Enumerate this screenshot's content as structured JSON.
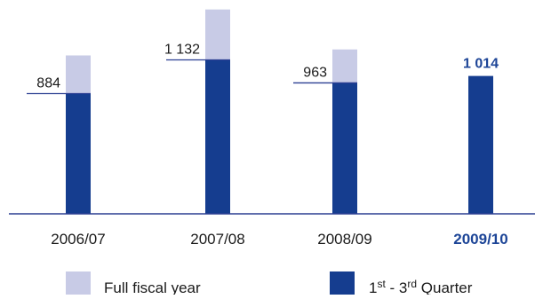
{
  "colors": {
    "full_year": "#c8cbe6",
    "q1_q3": "#153d8f",
    "axis": "#2b3f92",
    "text": "#1a1a1a",
    "highlight_text": "#1d4597"
  },
  "chart_data": {
    "type": "bar",
    "categories": [
      "2006/07",
      "2007/08",
      "2008/09",
      "2009/10"
    ],
    "highlight_category": "2009/10",
    "series": [
      {
        "name": "Full fiscal year",
        "values": [
          1165,
          1503,
          1209,
          null
        ]
      },
      {
        "name": "1st - 3rd Quarter",
        "values": [
          884,
          1132,
          963,
          1014
        ]
      }
    ],
    "data_labels": [
      "884",
      "1 132",
      "963",
      "1 014"
    ],
    "legend": [
      {
        "key": "full_year",
        "label": "Full fiscal year"
      },
      {
        "key": "q1_q3",
        "label_main": "1",
        "label_sup1": "st",
        "label_mid": " - 3",
        "label_sup2": "rd",
        "label_end": " Quarter"
      }
    ],
    "legend_position": "bottom",
    "ylim": [
      0,
      1540
    ],
    "grid": false
  }
}
